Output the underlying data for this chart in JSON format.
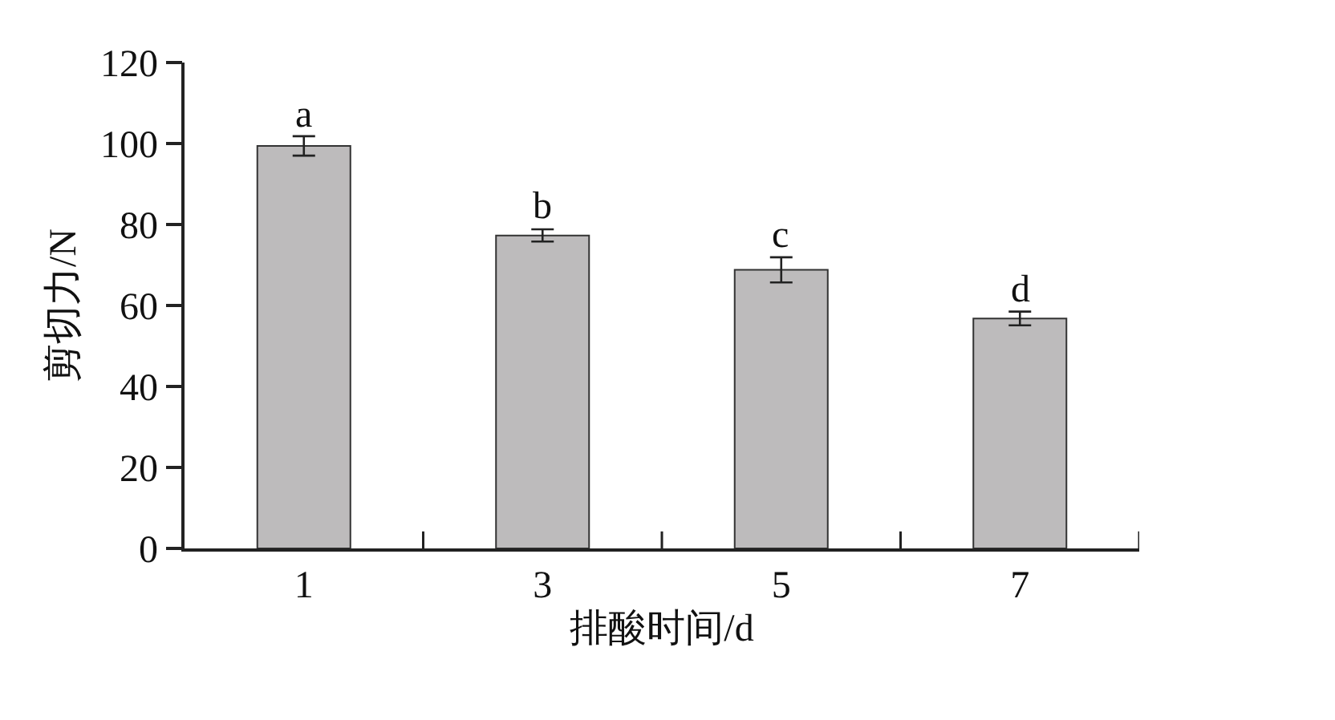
{
  "chart_data": {
    "type": "bar",
    "xlabel": "排酸时间/d",
    "ylabel": "剪切力/N",
    "categories": [
      "1",
      "3",
      "5",
      "7"
    ],
    "values": [
      99.4,
      77.3,
      68.8,
      56.8
    ],
    "errors": [
      2.4,
      1.5,
      3.1,
      1.7
    ],
    "color": "#bdbbbc",
    "ylim": [
      0,
      120
    ],
    "yticks": [
      0,
      20,
      40,
      60,
      80,
      100,
      120
    ],
    "grid": false,
    "annotations": [
      {
        "text": "a",
        "x": "1",
        "y": 101.8
      },
      {
        "text": "b",
        "x": "3",
        "y": 79.1
      },
      {
        "text": "c",
        "x": "5",
        "y": 71.9
      },
      {
        "text": "d",
        "x": "7",
        "y": 58.5
      }
    ]
  }
}
